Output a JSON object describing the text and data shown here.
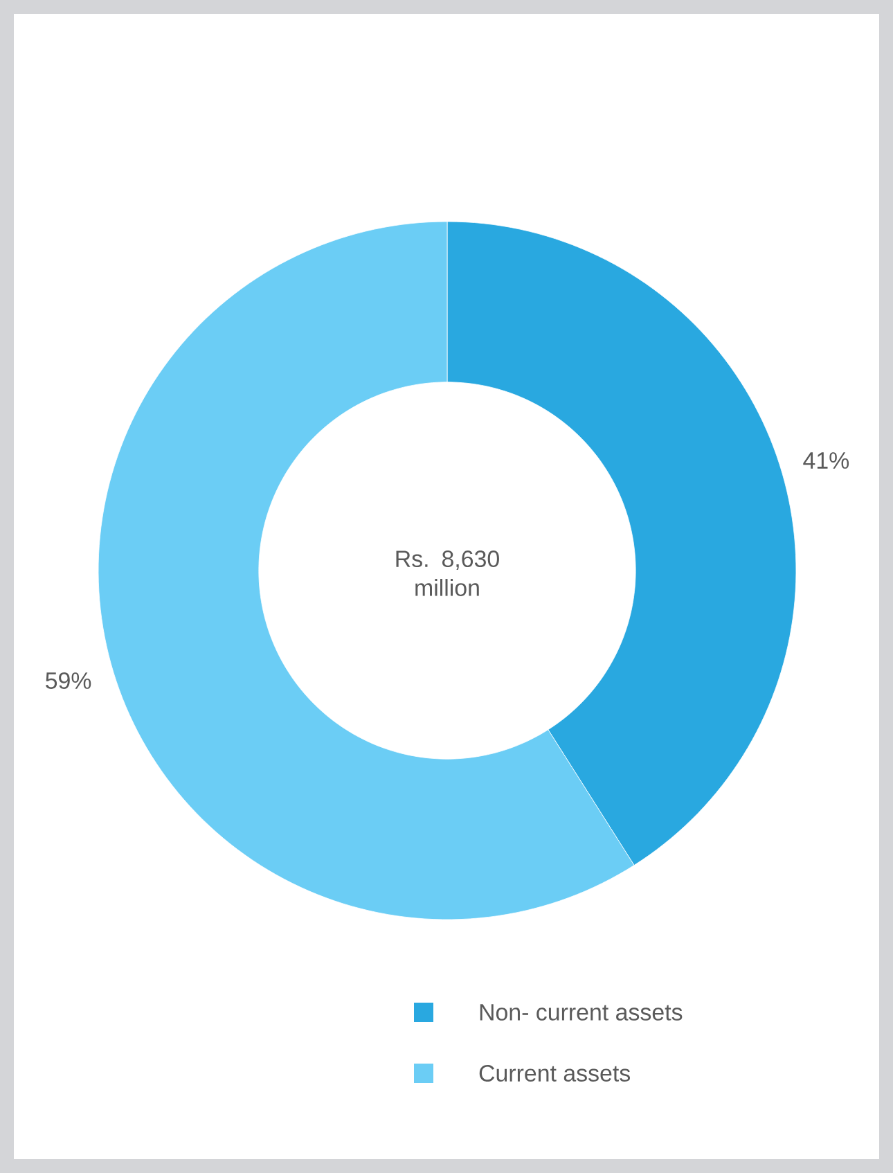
{
  "chart_data": {
    "type": "donut",
    "categories": [
      "Non- current assets",
      "Current assets"
    ],
    "values": [
      41,
      59
    ],
    "colors": [
      "#29a8e0",
      "#6bcdf5"
    ],
    "value_labels": [
      "41%",
      "59%"
    ],
    "annotations": [
      "Rs. 8,630 million"
    ],
    "legend": "bottom"
  }
}
